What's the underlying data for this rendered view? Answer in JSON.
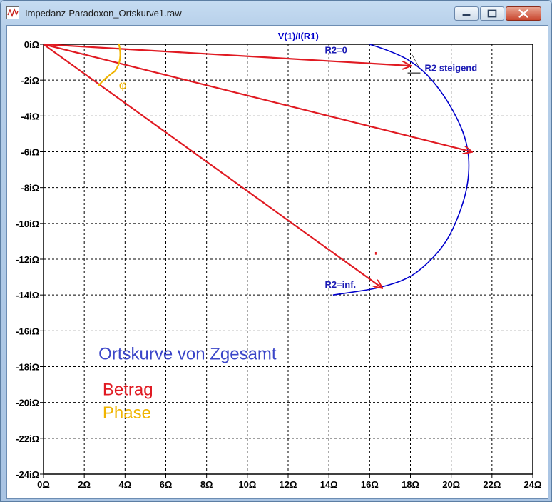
{
  "window": {
    "title": "Impedanz-Paradoxon_Ortskurve1.raw",
    "icon": "waveform-viewer-icon"
  },
  "colors": {
    "curve": "#0000cc",
    "arrows": "#e01a22",
    "phase": "#f0b400",
    "annotation_blue": "#3a45c8",
    "grid": "#000000"
  },
  "chart_data": {
    "type": "line",
    "title": "V(1)/I(R1)",
    "x_unit": "Ω",
    "xlim": [
      0,
      24
    ],
    "ylim": [
      -24,
      0
    ],
    "x_ticks": [
      "0Ω",
      "2Ω",
      "4Ω",
      "6Ω",
      "8Ω",
      "10Ω",
      "12Ω",
      "14Ω",
      "16Ω",
      "18Ω",
      "20Ω",
      "22Ω",
      "24Ω"
    ],
    "y_ticks": [
      "0iΩ",
      "-2iΩ",
      "-4iΩ",
      "-6iΩ",
      "-8iΩ",
      "-10iΩ",
      "-12iΩ",
      "-14iΩ",
      "-16iΩ",
      "-18iΩ",
      "-20iΩ",
      "-22iΩ",
      "-24iΩ"
    ],
    "grid": true,
    "series": [
      {
        "name": "V(1)/I(R1)",
        "x": [
          16,
          17.4,
          18.6,
          19.5,
          20.2,
          20.7,
          20.9,
          20.8,
          20.4,
          19.8,
          18.9,
          17.9,
          16.5,
          15.4,
          14.2
        ],
        "y": [
          0,
          -0.5,
          -1.4,
          -2.6,
          -3.9,
          -5.2,
          -6.5,
          -8,
          -9.5,
          -11,
          -12.2,
          -13.1,
          -13.6,
          -13.8,
          -14
        ]
      }
    ],
    "phasors": [
      {
        "x": 18,
        "y": -1.2
      },
      {
        "x": 21,
        "y": -6
      },
      {
        "x": 16.6,
        "y": -13.6
      }
    ],
    "annotations": {
      "r2_zero": "R2=0",
      "r2_increasing": "R2 steigend",
      "r2_inf": "R2=inf.",
      "phase_symbol": "φ"
    },
    "legend_notes": {
      "title": "Ortskurve von Zgesamt",
      "magnitude": "Betrag",
      "phase": "Phase"
    }
  }
}
